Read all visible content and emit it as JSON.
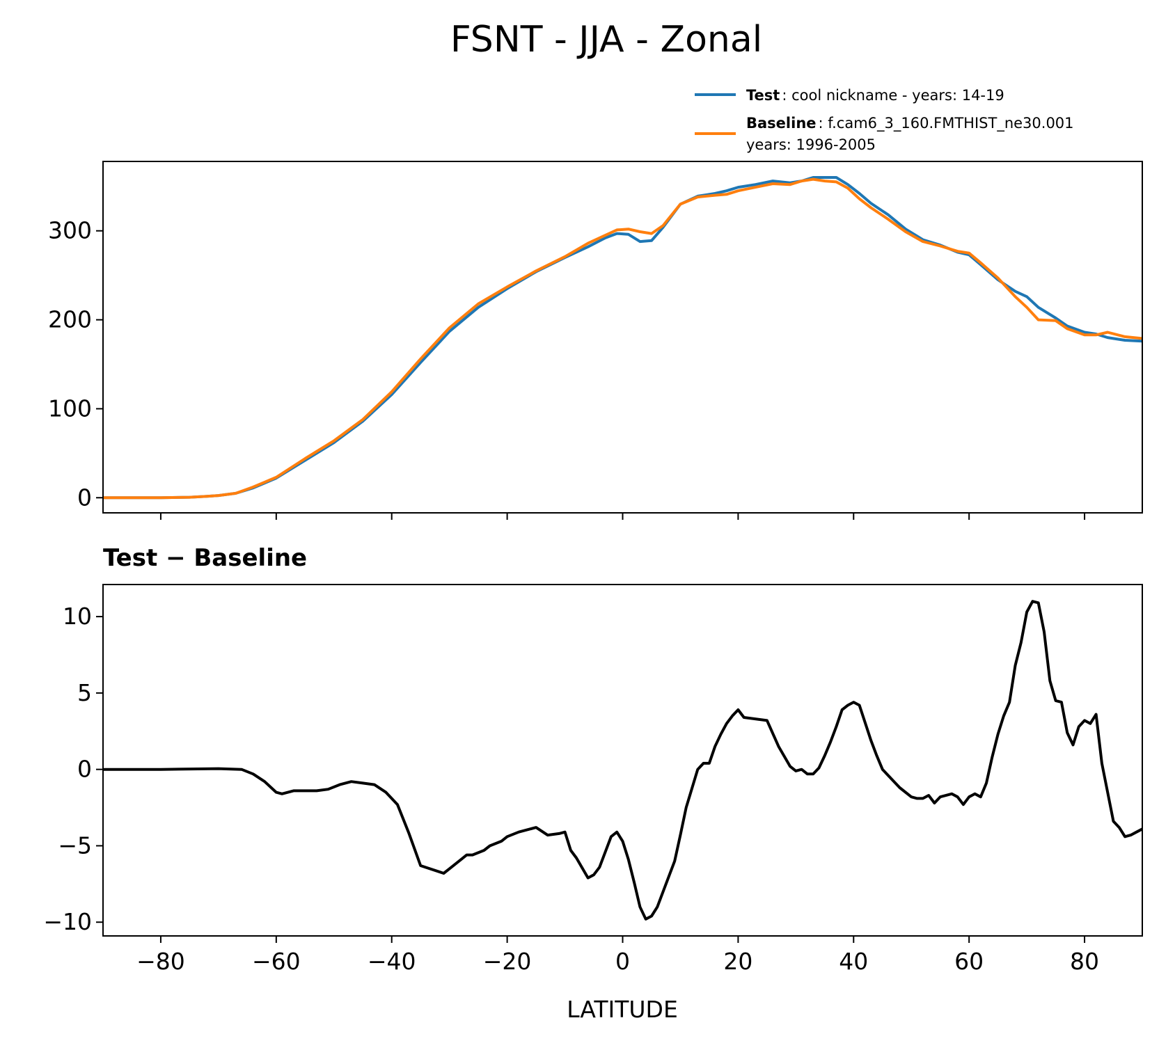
{
  "chart_data": {
    "title": "FSNT - JJA - Zonal",
    "xlabel": "LATITUDE",
    "xlim": [
      -90,
      90
    ],
    "xticks": [
      -80,
      -60,
      -40,
      -20,
      0,
      20,
      40,
      60,
      80
    ],
    "xtick_labels": [
      "−80",
      "−60",
      "−40",
      "−20",
      "0",
      "20",
      "40",
      "60",
      "80"
    ],
    "panels": [
      {
        "type": "line",
        "ylim": [
          -17,
          378
        ],
        "yticks": [
          0,
          100,
          200,
          300
        ],
        "ytick_labels": [
          "0",
          "100",
          "200",
          "300"
        ],
        "legend": {
          "placement": "above top-right",
          "entries": [
            {
              "series": "test",
              "label_bold": "Test",
              "label_line1": ": cool nickname - years: 14-19",
              "label_line2": ""
            },
            {
              "series": "baseline",
              "label_bold": "Baseline",
              "label_line1": ": f.cam6_3_160.FMTHIST_ne30.001",
              "label_line2": "years: 1996-2005"
            }
          ]
        },
        "series": [
          {
            "name": "Test",
            "color": "#1f77b4",
            "x": [
              -90,
              -85,
              -80,
              -75,
              -72,
              -70,
              -67,
              -64,
              -60,
              -55,
              -50,
              -45,
              -40,
              -35,
              -30,
              -25,
              -20,
              -15,
              -10,
              -6,
              -3,
              -1,
              1,
              3,
              5,
              7,
              10,
              13,
              16,
              18,
              20,
              23,
              26,
              29,
              31,
              33,
              35,
              37,
              39,
              41,
              43,
              46,
              49,
              52,
              55,
              58,
              60,
              62,
              65,
              68,
              70,
              72,
              75,
              77,
              80,
              82,
              84,
              87,
              90
            ],
            "y": [
              0,
              0,
              0,
              0.5,
              1.5,
              2.5,
              5,
              11,
              22,
              42,
              62,
              86,
              116,
              152,
              187,
              214,
              235,
              254,
              270,
              282,
              292,
              297,
              296,
              288,
              289,
              304,
              330,
              339,
              342,
              345,
              349,
              352,
              356,
              354,
              356,
              360,
              360,
              360,
              352,
              342,
              331,
              318,
              302,
              290,
              284,
              276,
              273,
              262,
              245,
              232,
              226,
              214,
              202,
              193,
              186,
              184,
              180,
              177,
              176
            ]
          },
          {
            "name": "Baseline",
            "color": "#ff7f0e",
            "x": [
              -90,
              -85,
              -80,
              -75,
              -72,
              -70,
              -67,
              -64,
              -60,
              -55,
              -50,
              -45,
              -40,
              -35,
              -30,
              -25,
              -20,
              -15,
              -10,
              -6,
              -3,
              -1,
              1,
              3,
              5,
              7,
              10,
              13,
              16,
              18,
              20,
              23,
              26,
              29,
              31,
              33,
              35,
              37,
              39,
              41,
              43,
              46,
              49,
              52,
              55,
              58,
              60,
              62,
              65,
              68,
              70,
              72,
              75,
              77,
              80,
              82,
              84,
              87,
              90
            ],
            "y": [
              0,
              0,
              0,
              0.5,
              1.5,
              2.5,
              5,
              12,
              23,
              44,
              64,
              88,
              119,
              156,
              191,
              218,
              237,
              255,
              271,
              286,
              295,
              301,
              302,
              299,
              297,
              306,
              330,
              338,
              340,
              341,
              345,
              349,
              353,
              352,
              356,
              358,
              356,
              355,
              348,
              336,
              326,
              313,
              299,
              288,
              283,
              277,
              275,
              264,
              247,
              226,
              214,
              200,
              199,
              190,
              183,
              183,
              186,
              181,
              179
            ]
          }
        ]
      },
      {
        "type": "line",
        "title": "Test − Baseline",
        "ylim": [
          -10.9,
          12.1
        ],
        "yticks": [
          -10,
          -5,
          0,
          5,
          10
        ],
        "ytick_labels": [
          "−10",
          "−5",
          "0",
          "5",
          "10"
        ],
        "series": [
          {
            "name": "Test − Baseline",
            "color": "#000000",
            "x": [
              -90,
              -80,
              -70,
              -66,
              -64,
              -62,
              -60,
              -59,
              -57,
              -55,
              -53,
              -51,
              -49,
              -47,
              -45,
              -43,
              -41,
              -39,
              -37,
              -35,
              -31,
              -30,
              -28,
              -27,
              -26,
              -24,
              -23,
              -21,
              -20,
              -18,
              -15,
              -13,
              -11,
              -10,
              -9,
              -8,
              -6,
              -5,
              -4,
              -2,
              -1,
              0,
              1,
              2,
              3,
              4,
              5,
              6,
              7,
              9,
              10,
              11,
              13,
              14,
              15,
              16,
              17,
              18,
              19,
              20,
              21,
              25,
              27,
              29,
              30,
              31,
              32,
              33,
              34,
              35,
              36,
              37,
              38,
              39,
              40,
              41,
              43,
              44,
              45,
              47,
              48,
              50,
              51,
              52,
              53,
              54,
              55,
              57,
              58,
              59,
              60,
              61,
              62,
              63,
              64,
              65,
              66,
              67,
              68,
              69,
              70,
              71,
              72,
              73,
              74,
              75,
              76,
              77,
              78,
              79,
              80,
              81,
              82,
              83,
              85,
              86,
              87,
              88,
              89,
              90
            ],
            "y": [
              0,
              0,
              0.05,
              0,
              -0.3,
              -0.8,
              -1.5,
              -1.6,
              -1.4,
              -1.4,
              -1.4,
              -1.3,
              -1.0,
              -0.8,
              -0.9,
              -1.0,
              -1.5,
              -2.3,
              -4.2,
              -6.3,
              -6.8,
              -6.5,
              -5.9,
              -5.6,
              -5.6,
              -5.3,
              -5.0,
              -4.7,
              -4.4,
              -4.1,
              -3.8,
              -4.3,
              -4.2,
              -4.1,
              -5.3,
              -5.8,
              -7.1,
              -6.9,
              -6.4,
              -4.4,
              -4.1,
              -4.7,
              -5.9,
              -7.4,
              -9.0,
              -9.8,
              -9.6,
              -9.0,
              -8.0,
              -6.0,
              -4.3,
              -2.5,
              0,
              0.4,
              0.4,
              1.5,
              2.3,
              3.0,
              3.5,
              3.9,
              3.4,
              3.2,
              1.5,
              0.2,
              -0.1,
              0,
              -0.3,
              -0.3,
              0.1,
              0.9,
              1.8,
              2.8,
              3.9,
              4.2,
              4.4,
              4.2,
              1.9,
              0.9,
              0,
              -0.8,
              -1.2,
              -1.8,
              -1.9,
              -1.9,
              -1.7,
              -2.2,
              -1.8,
              -1.6,
              -1.8,
              -2.3,
              -1.8,
              -1.6,
              -1.8,
              -0.9,
              0.8,
              2.3,
              3.5,
              4.4,
              6.8,
              8.3,
              10.3,
              11.0,
              10.9,
              9.0,
              5.8,
              4.5,
              4.4,
              2.4,
              1.6,
              2.8,
              3.2,
              3.0,
              3.6,
              0.4,
              -3.4,
              -3.8,
              -4.4,
              -4.3,
              -4.1,
              -3.9
            ]
          }
        ]
      }
    ]
  }
}
